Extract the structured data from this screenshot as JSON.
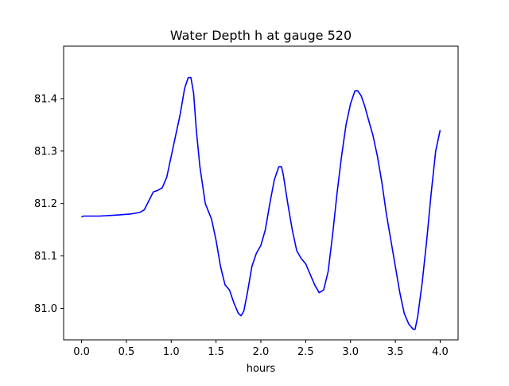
{
  "chart_data": {
    "type": "line",
    "title": "Water Depth h at gauge 520",
    "xlabel": "hours",
    "ylabel": "",
    "xlim": [
      -0.2,
      4.2
    ],
    "ylim": [
      80.94,
      81.5
    ],
    "grid": false,
    "x_ticks": [
      0.0,
      0.5,
      1.0,
      1.5,
      2.0,
      2.5,
      3.0,
      3.5,
      4.0
    ],
    "x_tick_labels": [
      "0.0",
      "0.5",
      "1.0",
      "1.5",
      "2.0",
      "2.5",
      "3.0",
      "3.5",
      "4.0"
    ],
    "y_ticks": [
      81.0,
      81.1,
      81.2,
      81.3,
      81.4
    ],
    "y_tick_labels": [
      "81.0",
      "81.1",
      "81.2",
      "81.3",
      "81.4"
    ],
    "series": [
      {
        "color": "#0000ff",
        "x": [
          0.0,
          0.02,
          0.2,
          0.4,
          0.55,
          0.65,
          0.7,
          0.75,
          0.8,
          0.85,
          0.9,
          0.95,
          1.0,
          1.05,
          1.1,
          1.15,
          1.19,
          1.22,
          1.25,
          1.28,
          1.32,
          1.38,
          1.45,
          1.5,
          1.55,
          1.6,
          1.65,
          1.7,
          1.75,
          1.78,
          1.81,
          1.85,
          1.9,
          1.95,
          2.0,
          2.05,
          2.1,
          2.15,
          2.2,
          2.23,
          2.25,
          2.3,
          2.35,
          2.4,
          2.45,
          2.5,
          2.55,
          2.6,
          2.65,
          2.7,
          2.75,
          2.8,
          2.85,
          2.9,
          2.95,
          3.0,
          3.05,
          3.08,
          3.12,
          3.16,
          3.2,
          3.25,
          3.3,
          3.35,
          3.4,
          3.45,
          3.5,
          3.55,
          3.6,
          3.65,
          3.7,
          3.72,
          3.75,
          3.8,
          3.85,
          3.9,
          3.95,
          4.0
        ],
        "y": [
          81.174,
          81.176,
          81.176,
          81.178,
          81.18,
          81.183,
          81.188,
          81.205,
          81.222,
          81.225,
          81.23,
          81.25,
          81.29,
          81.33,
          81.37,
          81.42,
          81.44,
          81.44,
          81.41,
          81.34,
          81.27,
          81.2,
          81.17,
          81.13,
          81.08,
          81.045,
          81.035,
          81.01,
          80.99,
          80.986,
          80.995,
          81.03,
          81.08,
          81.105,
          81.12,
          81.15,
          81.2,
          81.245,
          81.27,
          81.27,
          81.255,
          81.2,
          81.15,
          81.11,
          81.095,
          81.085,
          81.065,
          81.045,
          81.03,
          81.035,
          81.07,
          81.14,
          81.22,
          81.29,
          81.35,
          81.39,
          81.415,
          81.415,
          81.405,
          81.385,
          81.36,
          81.33,
          81.29,
          81.24,
          81.18,
          81.13,
          81.08,
          81.03,
          80.99,
          80.97,
          80.96,
          80.96,
          80.985,
          81.05,
          81.13,
          81.22,
          81.3,
          81.34
        ]
      }
    ]
  }
}
